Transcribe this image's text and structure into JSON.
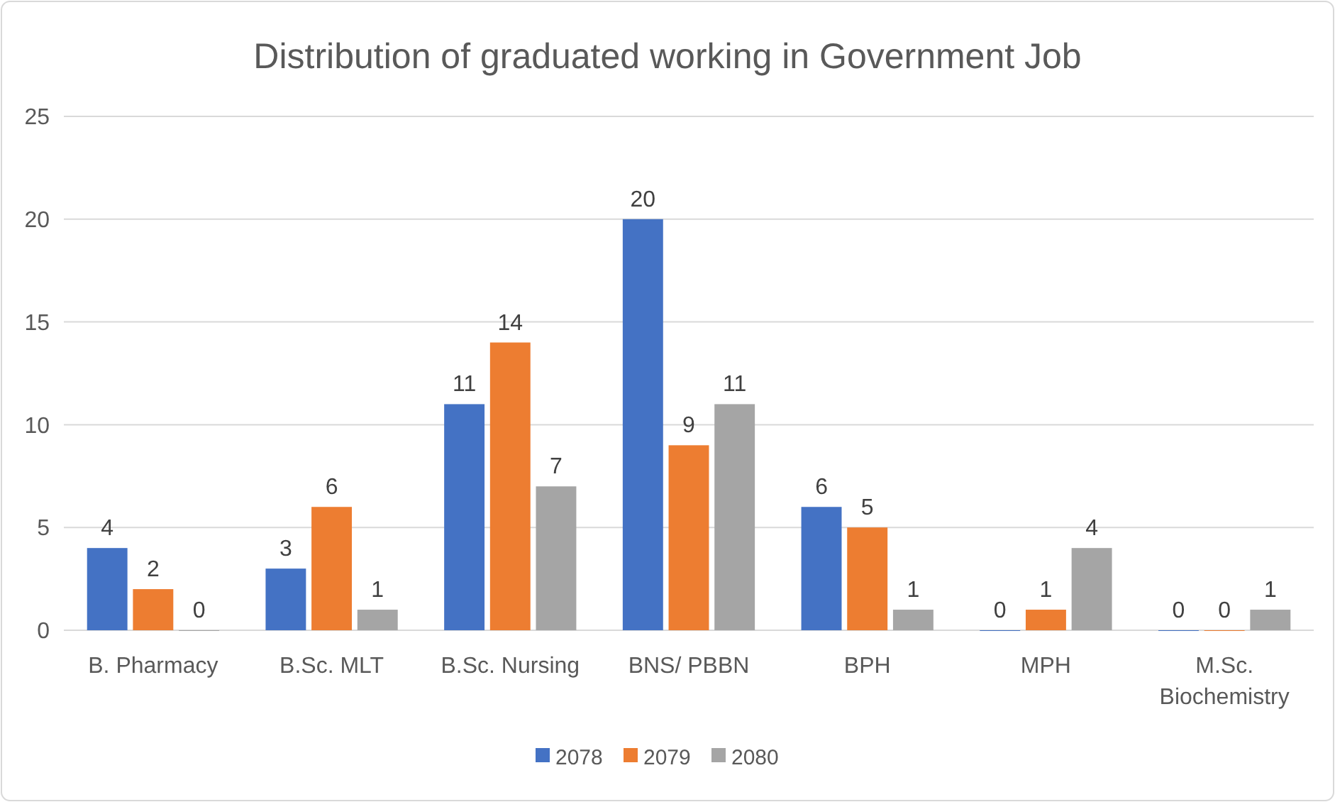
{
  "chart_data": {
    "type": "bar",
    "title": "Distribution of graduated working in Government Job",
    "categories": [
      "B. Pharmacy",
      "B.Sc. MLT",
      "B.Sc. Nursing",
      "BNS/ PBBN",
      "BPH",
      "MPH",
      "M.Sc. Biochemistry"
    ],
    "series": [
      {
        "name": "2078",
        "color": "#4472c4",
        "values": [
          4,
          3,
          11,
          20,
          6,
          0,
          0
        ]
      },
      {
        "name": "2079",
        "color": "#ed7d31",
        "values": [
          2,
          6,
          14,
          9,
          5,
          1,
          0
        ]
      },
      {
        "name": "2080",
        "color": "#a5a5a5",
        "values": [
          0,
          1,
          7,
          11,
          1,
          4,
          1
        ]
      }
    ],
    "ylim": [
      0,
      25
    ],
    "yticks": [
      0,
      5,
      10,
      15,
      20,
      25
    ],
    "grid": "y",
    "legend": "bottom",
    "data_labels": true
  }
}
